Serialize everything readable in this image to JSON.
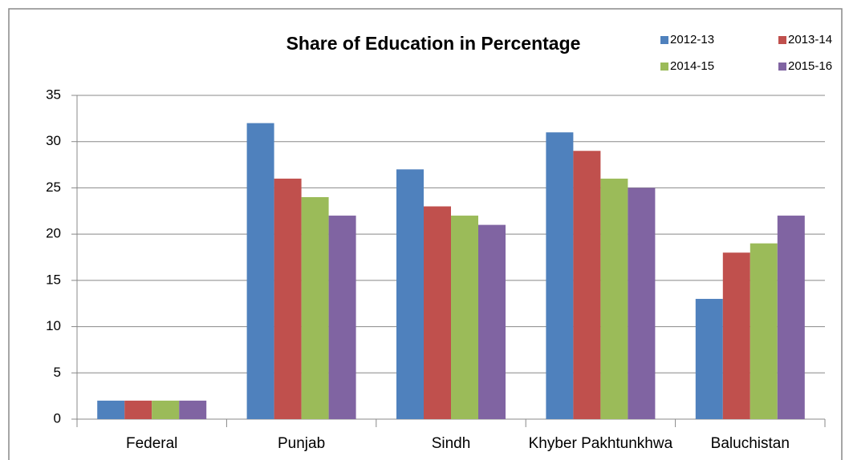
{
  "chart_data": {
    "type": "bar",
    "title": "Share of Education in Percentage",
    "categories": [
      "Federal",
      "Punjab",
      "Sindh",
      "Khyber Pakhtunkhwa",
      "Baluchistan"
    ],
    "series": [
      {
        "name": "2012-13",
        "color": "#4f81bd",
        "values": [
          2,
          32,
          27,
          31,
          13
        ]
      },
      {
        "name": "2013-14",
        "color": "#c0504d",
        "values": [
          2,
          26,
          23,
          29,
          18
        ]
      },
      {
        "name": "2014-15",
        "color": "#9bbb59",
        "values": [
          2,
          24,
          22,
          26,
          19
        ]
      },
      {
        "name": "2015-16",
        "color": "#8064a2",
        "values": [
          2,
          22,
          21,
          25,
          22
        ]
      }
    ],
    "ylim": [
      0,
      35
    ],
    "yticks": [
      0,
      5,
      10,
      15,
      20,
      25,
      30,
      35
    ],
    "grid": true,
    "legend": "top-right"
  }
}
